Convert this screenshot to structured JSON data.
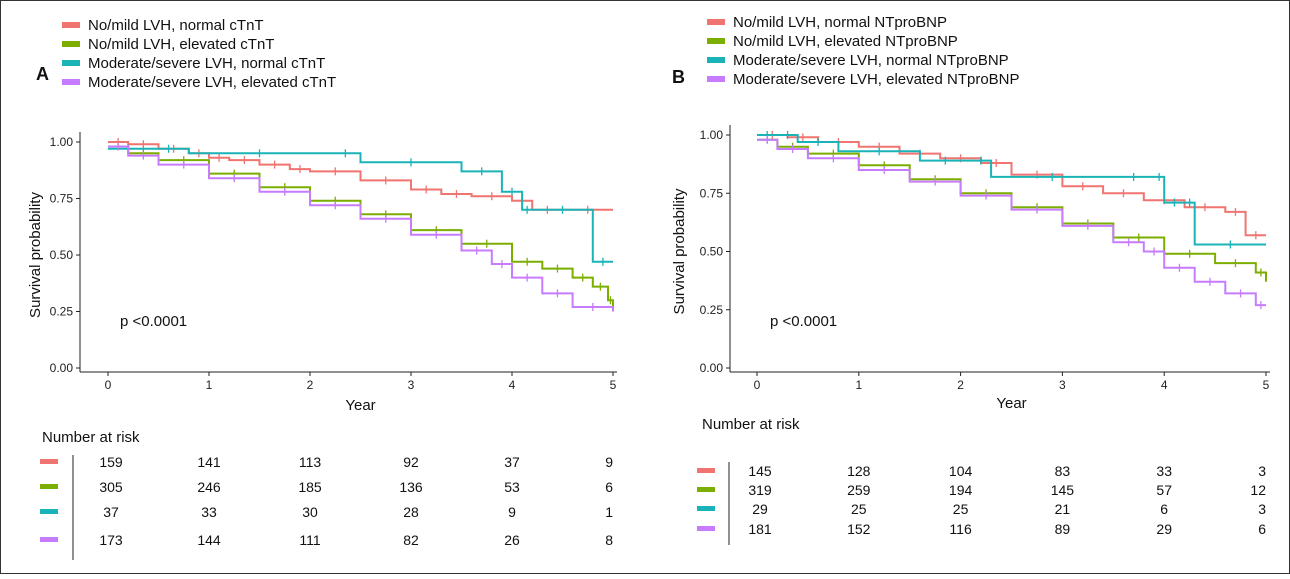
{
  "chart_data": [
    {
      "type": "line",
      "panel_label": "A",
      "xlabel": "Year",
      "ylabel": "Survival probability",
      "xlim": [
        0,
        5
      ],
      "ylim": [
        0,
        1
      ],
      "x_ticks": [
        0,
        1,
        2,
        3,
        4,
        5
      ],
      "y_ticks": [
        "0.00",
        "0.25",
        "0.50",
        "0.75",
        "1.00"
      ],
      "legend_position": "top-left",
      "annotation": "p <0.0001",
      "risk_table_title": "Number at risk",
      "series": [
        {
          "name": "No/mild LVH, normal cTnT",
          "color": "#f07470",
          "x": [
            0,
            0.2,
            0.5,
            0.8,
            1.0,
            1.2,
            1.5,
            1.8,
            2.0,
            2.5,
            3.0,
            3.3,
            3.6,
            4.0,
            4.2,
            4.5,
            5.0
          ],
          "y": [
            1.0,
            0.99,
            0.97,
            0.95,
            0.93,
            0.92,
            0.9,
            0.88,
            0.87,
            0.83,
            0.79,
            0.77,
            0.76,
            0.74,
            0.7,
            0.7,
            0.7
          ],
          "risk": [
            159,
            141,
            113,
            92,
            37,
            9
          ]
        },
        {
          "name": "No/mild LVH, elevated cTnT",
          "color": "#7cae00",
          "x": [
            0,
            0.2,
            0.5,
            1.0,
            1.5,
            2.0,
            2.5,
            3.0,
            3.5,
            4.0,
            4.3,
            4.6,
            4.8,
            4.95,
            5.0
          ],
          "y": [
            0.98,
            0.95,
            0.92,
            0.86,
            0.8,
            0.74,
            0.68,
            0.61,
            0.55,
            0.47,
            0.44,
            0.4,
            0.36,
            0.3,
            0.27
          ],
          "risk": [
            305,
            246,
            185,
            136,
            53,
            6
          ]
        },
        {
          "name": "Moderate/severe LVH, normal cTnT",
          "color": "#1ab4b8",
          "x": [
            0,
            0.4,
            0.8,
            2.2,
            2.5,
            3.5,
            3.9,
            4.1,
            4.2,
            4.8,
            5.0
          ],
          "y": [
            0.97,
            0.97,
            0.95,
            0.95,
            0.91,
            0.87,
            0.78,
            0.7,
            0.7,
            0.47,
            0.47
          ],
          "risk": [
            37,
            33,
            30,
            28,
            9,
            1
          ]
        },
        {
          "name": "Moderate/severe LVH, elevated cTnT",
          "color": "#c77cff",
          "x": [
            0,
            0.2,
            0.5,
            1.0,
            1.5,
            2.0,
            2.5,
            3.0,
            3.5,
            3.8,
            4.0,
            4.3,
            4.6,
            5.0
          ],
          "y": [
            0.98,
            0.94,
            0.9,
            0.84,
            0.78,
            0.72,
            0.66,
            0.59,
            0.52,
            0.46,
            0.4,
            0.33,
            0.27,
            0.25
          ],
          "risk": [
            173,
            144,
            111,
            82,
            26,
            8
          ]
        }
      ]
    },
    {
      "type": "line",
      "panel_label": "B",
      "xlabel": "Year",
      "ylabel": "Survival probability",
      "xlim": [
        0,
        5
      ],
      "ylim": [
        0,
        1
      ],
      "x_ticks": [
        0,
        1,
        2,
        3,
        4,
        5
      ],
      "y_ticks": [
        "0.00",
        "0.25",
        "0.50",
        "0.75",
        "1.00"
      ],
      "legend_position": "top-left",
      "annotation": "p <0.0001",
      "risk_table_title": "Number at risk",
      "series": [
        {
          "name": "No/mild LVH, normal NTproBNP",
          "color": "#f07470",
          "x": [
            0,
            0.3,
            0.6,
            1.0,
            1.4,
            1.8,
            2.2,
            2.5,
            3.0,
            3.4,
            3.8,
            4.2,
            4.6,
            4.8,
            5.0
          ],
          "y": [
            1.0,
            0.99,
            0.97,
            0.95,
            0.92,
            0.9,
            0.88,
            0.83,
            0.78,
            0.75,
            0.72,
            0.69,
            0.67,
            0.57,
            0.57
          ],
          "risk": [
            145,
            128,
            104,
            83,
            33,
            3
          ]
        },
        {
          "name": "No/mild LVH, elevated NTproBNP",
          "color": "#7cae00",
          "x": [
            0,
            0.2,
            0.5,
            1.0,
            1.5,
            2.0,
            2.5,
            3.0,
            3.5,
            4.0,
            4.5,
            4.9,
            5.0
          ],
          "y": [
            0.98,
            0.95,
            0.92,
            0.87,
            0.81,
            0.75,
            0.69,
            0.62,
            0.56,
            0.49,
            0.45,
            0.41,
            0.37
          ],
          "risk": [
            319,
            259,
            194,
            145,
            57,
            12
          ]
        },
        {
          "name": "Moderate/severe LVH, normal NTproBNP",
          "color": "#1ab4b8",
          "x": [
            0,
            0.2,
            0.4,
            0.8,
            1.6,
            2.1,
            2.3,
            3.5,
            3.9,
            4.0,
            4.2,
            4.3,
            5.0
          ],
          "y": [
            1.0,
            1.0,
            0.97,
            0.93,
            0.89,
            0.89,
            0.82,
            0.82,
            0.82,
            0.71,
            0.71,
            0.53,
            0.53
          ],
          "risk": [
            29,
            25,
            25,
            21,
            6,
            3
          ]
        },
        {
          "name": "Moderate/severe LVH, elevated NTproBNP",
          "color": "#c77cff",
          "x": [
            0,
            0.2,
            0.5,
            1.0,
            1.5,
            2.0,
            2.5,
            3.0,
            3.5,
            3.8,
            4.0,
            4.3,
            4.6,
            4.9,
            5.0
          ],
          "y": [
            0.98,
            0.94,
            0.9,
            0.85,
            0.8,
            0.74,
            0.68,
            0.61,
            0.54,
            0.5,
            0.43,
            0.37,
            0.32,
            0.27,
            0.27
          ],
          "risk": [
            181,
            152,
            116,
            89,
            29,
            6
          ]
        }
      ]
    }
  ]
}
